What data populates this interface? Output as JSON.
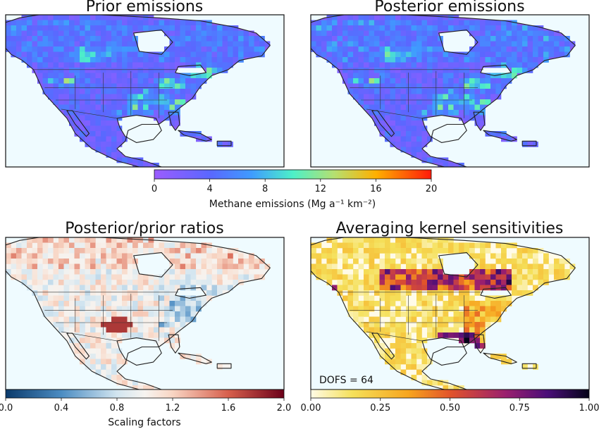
{
  "chart_data": [
    {
      "type": "heatmap",
      "title": "Prior emissions",
      "colormap": "rainbow",
      "colors": {
        "low": "#9b5cff",
        "mid_low": "#3f7bff",
        "mid": "#4df0c8",
        "mid_high": "#ffb000",
        "high": "#ff1a0a",
        "ocean": "#effbff"
      }
    },
    {
      "type": "heatmap",
      "title": "Posterior emissions",
      "colormap": "rainbow",
      "colors": {
        "low": "#9b5cff",
        "mid_low": "#3f7bff",
        "mid": "#4df0c8",
        "mid_high": "#ffb000",
        "high": "#ff1a0a",
        "ocean": "#effbff"
      }
    },
    {
      "type": "heatmap",
      "title": "Posterior/prior ratios",
      "colormap": "RdBu_r",
      "colors": {
        "low": "#0b3a6b",
        "mid": "#f7f4f0",
        "high": "#6b0019",
        "ocean": "#effbff"
      }
    },
    {
      "type": "heatmap",
      "title": "Averaging kernel sensitivities",
      "colormap": "inferno_r",
      "colors": {
        "low": "#fffbe6",
        "mid_low": "#f5d33a",
        "mid": "#e2542a",
        "mid_high": "#7b1f8a",
        "high": "#050418",
        "ocean": "#effbff"
      },
      "annotation": "DOFS = 64"
    }
  ],
  "colorbars": {
    "emissions": {
      "ticks": [
        "0",
        "4",
        "8",
        "12",
        "16",
        "20"
      ],
      "range": [
        0,
        20
      ],
      "label": "Methane emissions (Mg a⁻¹ km⁻²)"
    },
    "ratios": {
      "ticks": [
        "0.0",
        "0.4",
        "0.8",
        "1.2",
        "1.6",
        "2.0"
      ],
      "range": [
        0,
        2
      ],
      "label": "Scaling factors"
    },
    "sensitivities": {
      "ticks": [
        "0.00",
        "0.25",
        "0.50",
        "0.75",
        "1.00"
      ],
      "range": [
        0,
        1
      ],
      "label": ""
    }
  }
}
